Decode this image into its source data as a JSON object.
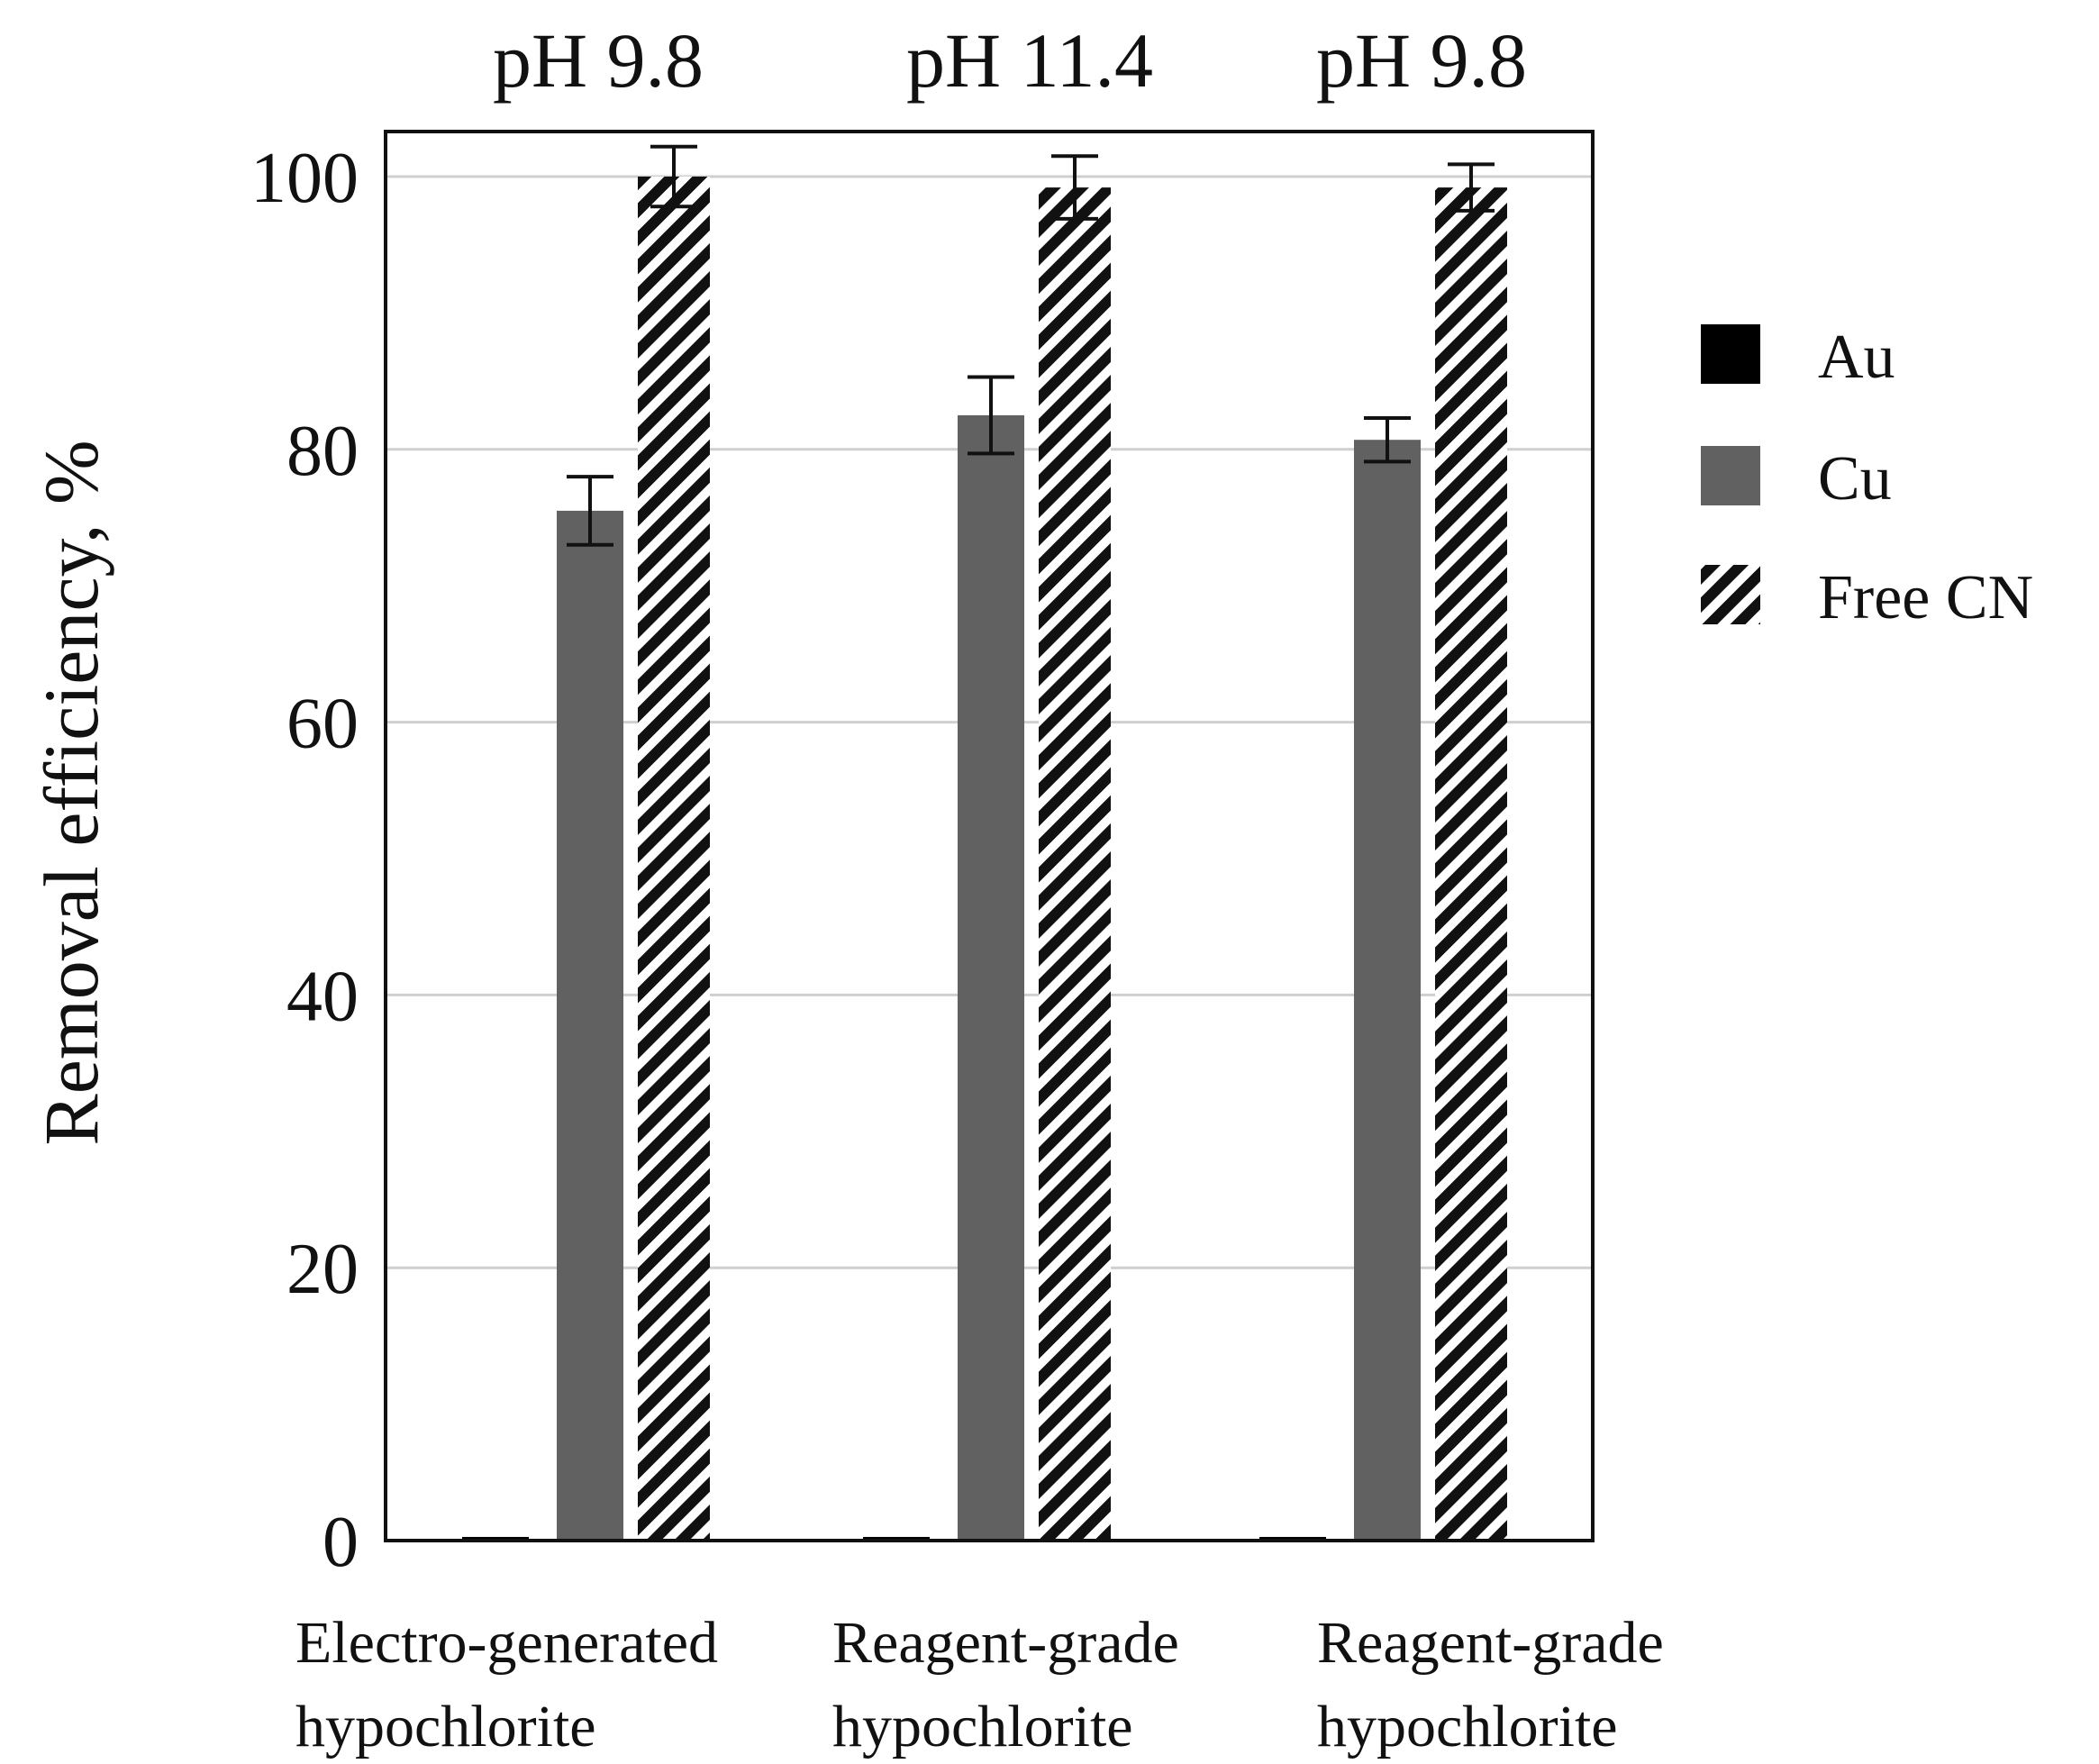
{
  "chart_data": {
    "type": "bar",
    "title": "",
    "xlabel": "",
    "ylabel": "Removal efficiency,  %",
    "ylim": [
      0,
      100
    ],
    "yticks": [
      0,
      20,
      40,
      60,
      80,
      100
    ],
    "ytick_labels": [
      "0",
      "20",
      "40",
      "60",
      "80",
      "100"
    ],
    "grid": true,
    "legend_position": "right",
    "categories": [
      [
        "Electro-generated",
        "hypochlorite"
      ],
      [
        "Reagent-grade",
        "hypochlorite"
      ],
      [
        "Reagent-grade",
        "hypochlorite"
      ]
    ],
    "annotations": [
      "pH 9.8",
      "pH 11.4",
      "pH 9.8"
    ],
    "series": [
      {
        "name": "Au",
        "values": [
          0.2,
          0.2,
          0.2
        ],
        "errors": [
          0,
          0,
          0
        ],
        "color": "#000000",
        "pattern": "solid"
      },
      {
        "name": "Cu",
        "values": [
          75.5,
          82.5,
          80.7
        ],
        "errors": [
          2.5,
          2.8,
          1.6
        ],
        "color": "#616161",
        "pattern": "solid"
      },
      {
        "name": "Free CN",
        "values": [
          100,
          99.2,
          99.2
        ],
        "errors": [
          2.2,
          2.3,
          1.7
        ],
        "color": "#111111",
        "pattern": "diagonal-stripes"
      }
    ]
  }
}
